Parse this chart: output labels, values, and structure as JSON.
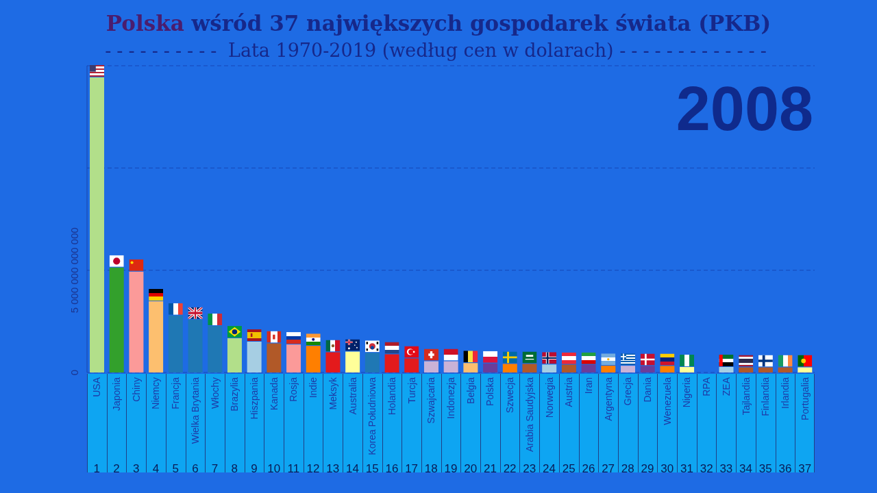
{
  "chart_data": {
    "type": "bar",
    "title": "Polska wśród 37 największych gospodarek świata (PKB)",
    "subtitle": "---------- Lata 1970-2019 (według cen w dolarach) -------------",
    "annotations": [
      "2008"
    ],
    "categories": [
      "USA",
      "Japonia",
      "Chiny",
      "Niemcy",
      "Francja",
      "Wielka Brytania",
      "Włochy",
      "Brazylia",
      "Hiszpania",
      "Kanada",
      "Rosja",
      "Indie",
      "Meksyk",
      "Australia",
      "Korea Południowa",
      "Holandia",
      "Turcja",
      "Szwajcaria",
      "Indonezja",
      "Belgia",
      "Polska",
      "Szwecja",
      "Arabia Saudyjska",
      "Norwegia",
      "Austria",
      "Iran",
      "Argentyna",
      "Grecja",
      "Dania",
      "Wenezuela",
      "Nigeria",
      "RPA",
      "ZEA",
      "Tajlandia",
      "Finlandia",
      "Irlandia",
      "Portugalia"
    ],
    "values": [
      14430000000000,
      5130000000000,
      4930000000000,
      3480000000000,
      2790000000000,
      2590000000000,
      2280000000000,
      1670000000000,
      1510000000000,
      1420000000000,
      1370000000000,
      1300000000000,
      990000000000,
      1020000000000,
      960000000000,
      890000000000,
      690000000000,
      550000000000,
      550000000000,
      460000000000,
      440000000000,
      420000000000,
      420000000000,
      390000000000,
      380000000000,
      380000000000,
      330000000000,
      330000000000,
      320000000000,
      320000000000,
      270000000000,
      null,
      270000000000,
      250000000000,
      250000000000,
      250000000000,
      250000000000
    ],
    "colors": [
      "#b2df8a",
      "#33a02c",
      "#fb9a99",
      "#fdbf6f",
      "#1f78b4",
      "#1f78b4",
      "#1f78b4",
      "#b2df8a",
      "#a6cee3",
      "#b15928",
      "#fb9a99",
      "#ff7f00",
      "#e31a1c",
      "#ffff99",
      "#1f78b4",
      "#e31a1c",
      "#e31a1c",
      "#cab2d6",
      "#cab2d6",
      "#fdbf6f",
      "#6a3d9a",
      "#ff7f00",
      "#b15928",
      "#a6cee3",
      "#b15928",
      "#6a3d9a",
      "#ff7f00",
      "#cab2d6",
      "#6a3d9a",
      "#ff7f00",
      "#ffff99",
      null,
      "#a6cee3",
      "#b15928",
      "#b15928",
      "#b15928",
      "#ffff99"
    ],
    "ylim": [
      0,
      15000000000000
    ],
    "yticks": [
      0,
      {
        "value": 5000000000000,
        "label": "5 000 000 000 000"
      },
      {
        "value": 10000000000000,
        "label": null
      }
    ],
    "x2lim": [
      1,
      37
    ],
    "x2ticks": [
      1,
      2,
      3,
      4,
      5,
      6,
      7,
      8,
      9,
      10,
      11,
      12,
      13,
      14,
      15,
      16,
      17,
      18,
      19,
      20,
      21,
      22,
      23,
      24,
      25,
      26,
      27,
      28,
      29,
      30,
      31,
      32,
      33,
      34,
      35,
      36,
      37
    ],
    "grid": "y"
  }
}
